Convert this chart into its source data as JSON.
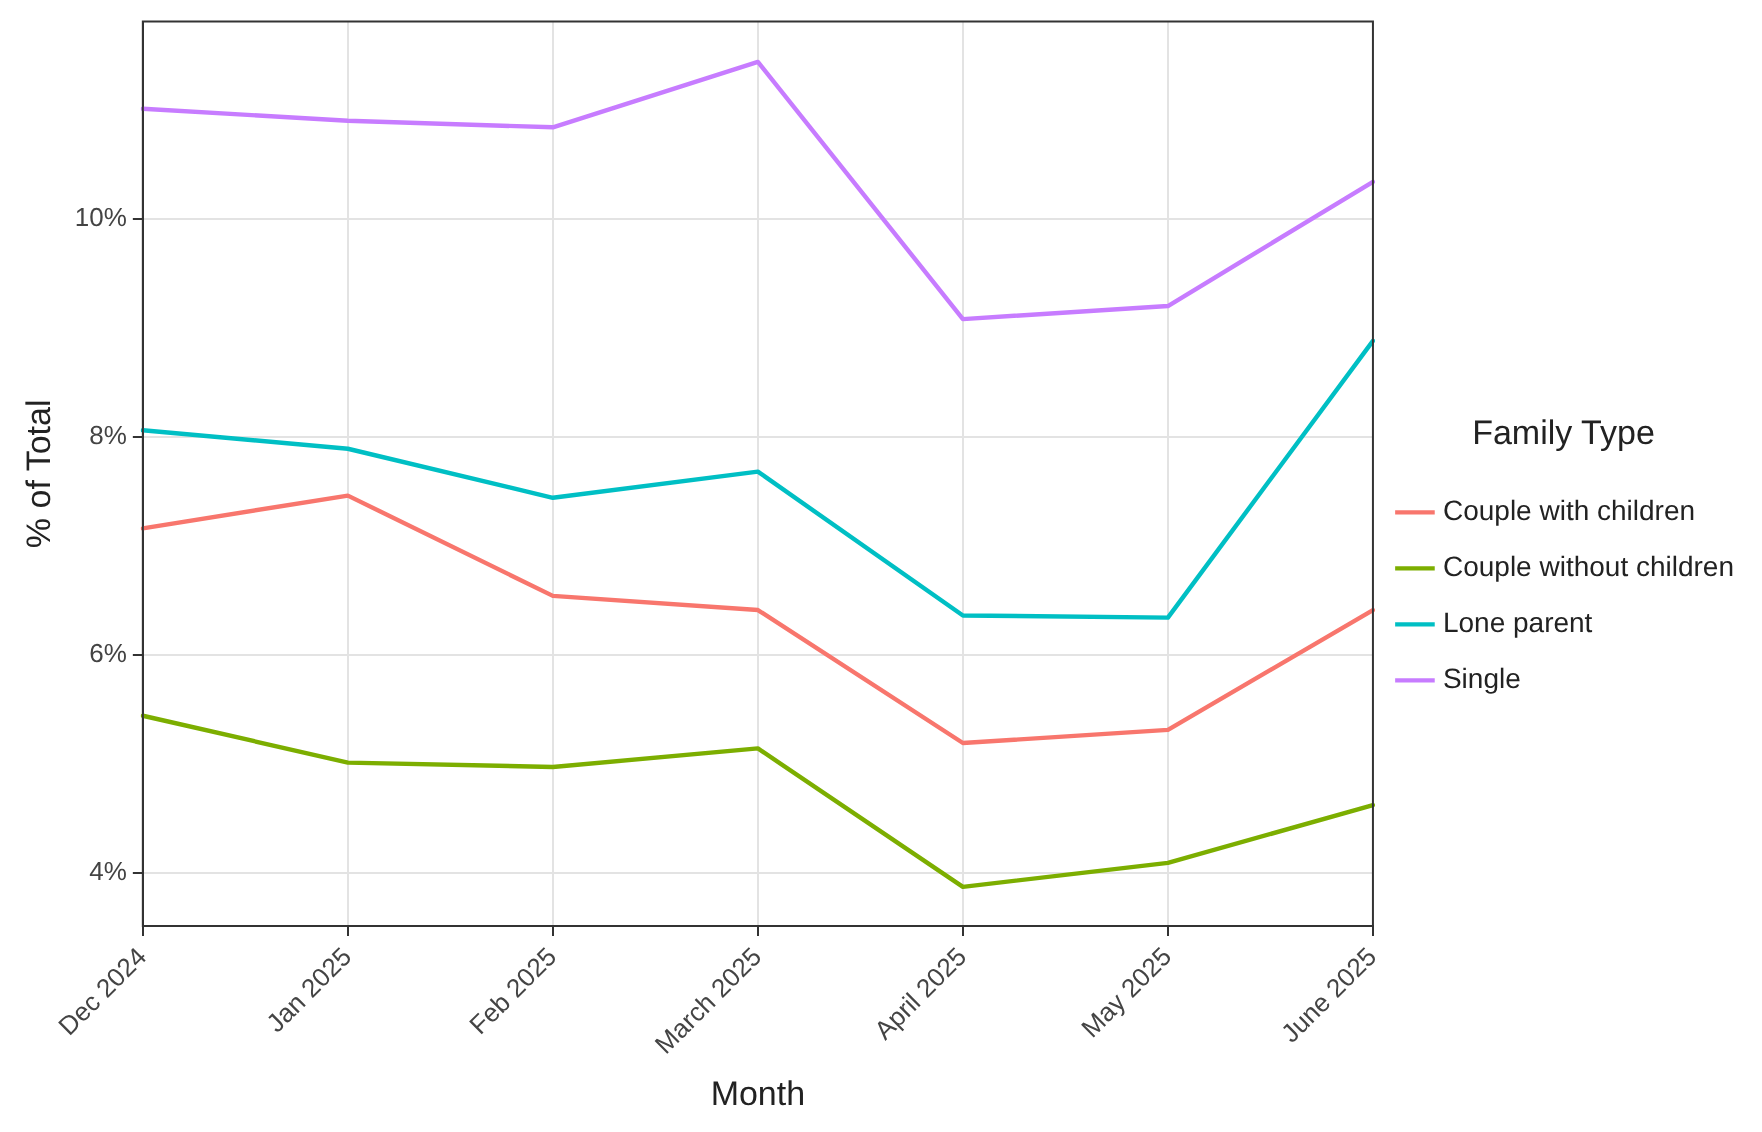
{
  "chart_data": {
    "type": "line",
    "xlabel": "Month",
    "ylabel": "% of Total",
    "legend_title": "Family Type",
    "legend": "right",
    "grid": true,
    "marker": "none",
    "line_style": "solid",
    "categories": [
      "Dec 2024",
      "Jan 2025",
      "Feb 2025",
      "March 2025",
      "April 2025",
      "May 2025",
      "June 2025"
    ],
    "ylim": [
      3.51,
      11.81
    ],
    "yticks": [
      {
        "value": 4,
        "label": "4%"
      },
      {
        "value": 6,
        "label": "6%"
      },
      {
        "value": 8,
        "label": "8%"
      },
      {
        "value": 10,
        "label": "10%"
      }
    ],
    "series": [
      {
        "name": "Couple with children",
        "color": "#f8766d",
        "values": [
          7.16,
          7.46,
          6.54,
          6.41,
          5.19,
          5.31,
          6.41
        ]
      },
      {
        "name": "Couple without children",
        "color": "#7cae00",
        "values": [
          5.44,
          5.01,
          4.97,
          5.14,
          3.87,
          4.09,
          4.62
        ]
      },
      {
        "name": "Lone parent",
        "color": "#00bfc4",
        "values": [
          8.06,
          7.89,
          7.44,
          7.68,
          6.36,
          6.34,
          8.88
        ]
      },
      {
        "name": "Single",
        "color": "#c77cff",
        "values": [
          11.01,
          10.9,
          10.84,
          11.44,
          9.08,
          9.2,
          10.34
        ]
      }
    ]
  }
}
